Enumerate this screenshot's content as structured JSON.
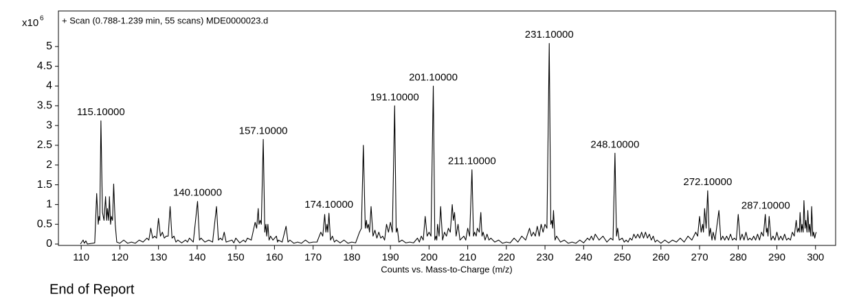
{
  "chart_data": {
    "type": "line",
    "title": "+ Scan (0.788-1.239 min, 55 scans) MDE0000023.d",
    "x_label": "Counts vs. Mass-to-Charge (m/z)",
    "y_scale": "x10",
    "y_scale_exp": "6",
    "color": "#000000",
    "xlim": [
      104.1,
      305.2
    ],
    "ylim": [
      0,
      5.9
    ],
    "xticks": [
      110,
      120,
      130,
      140,
      150,
      160,
      170,
      180,
      190,
      200,
      210,
      220,
      230,
      240,
      250,
      260,
      270,
      280,
      290,
      300
    ],
    "yticks": [
      0,
      0.5,
      1,
      1.5,
      2,
      2.5,
      3,
      3.5,
      4,
      4.5,
      5
    ],
    "x": [
      109.8,
      110.5,
      110.8,
      111.2,
      111.6,
      113.5,
      114,
      114.4,
      114.6,
      114.8,
      115.1,
      115.5,
      115.9,
      116.3,
      116.6,
      116.8,
      117.1,
      117.3,
      117.6,
      117.8,
      118.1,
      118.4,
      118.8,
      119.2,
      120,
      121,
      122,
      123,
      124,
      125,
      126,
      127,
      127.5,
      128,
      128.5,
      129,
      129.5,
      130,
      130.5,
      131,
      131.5,
      132,
      132.5,
      133,
      133.5,
      134,
      134.5,
      135,
      136,
      137,
      137.5,
      138,
      139,
      140.1,
      140.6,
      141,
      142,
      143,
      144,
      145,
      145.5,
      146,
      146.5,
      147,
      147.5,
      149,
      149.5,
      150,
      151,
      152,
      152.5,
      153,
      154,
      155,
      155.4,
      155.8,
      156,
      156.3,
      156.6,
      157.1,
      157.5,
      157.8,
      158,
      158.3,
      158.6,
      159,
      159.6,
      160.5,
      160.8,
      161,
      162,
      163,
      163.5,
      164,
      165,
      166,
      167,
      168,
      169,
      170,
      171,
      172,
      172.5,
      173,
      173.3,
      173.6,
      173.8,
      174.1,
      174.5,
      175,
      175.5,
      176,
      177,
      178,
      179,
      180,
      181,
      182,
      182.5,
      183,
      183.5,
      183.8,
      184,
      184.3,
      184.6,
      185,
      185.5,
      186,
      186.5,
      187,
      187.5,
      188,
      188.5,
      189,
      189.5,
      190,
      190.5,
      191.1,
      191.5,
      191.8,
      192.2,
      193,
      194,
      195,
      196,
      197,
      197.5,
      198,
      198.5,
      199,
      199.5,
      200,
      200.5,
      201.1,
      201.5,
      201.8,
      202,
      202.2,
      202.6,
      203,
      203.5,
      204,
      204.5,
      205,
      205.5,
      206,
      206.3,
      206.6,
      207,
      207.5,
      208,
      209,
      209.5,
      210,
      210.5,
      211.1,
      211.5,
      211.8,
      212.2,
      212.5,
      213,
      213.4,
      213.7,
      214,
      214.5,
      215,
      215.5,
      216,
      217,
      218,
      219,
      220,
      221,
      222,
      223,
      224,
      225,
      226,
      226.5,
      227,
      227.5,
      228,
      228.5,
      229,
      229.5,
      230,
      230.5,
      231.1,
      231.5,
      231.8,
      232,
      232.2,
      232.6,
      233,
      234,
      235,
      236,
      237,
      238,
      239,
      240,
      241,
      241.5,
      242,
      242.5,
      243,
      244,
      245,
      246,
      247,
      247.6,
      248.1,
      248.5,
      248.8,
      249.2,
      250,
      250.5,
      251,
      251.5,
      252,
      252.5,
      253,
      253.5,
      254,
      254.5,
      255,
      255.5,
      256,
      256.5,
      257,
      257.5,
      258,
      258.5,
      259,
      260,
      261,
      262,
      263,
      264,
      265,
      266,
      267,
      268,
      269,
      269.5,
      270,
      270.4,
      270.8,
      271,
      271.3,
      271.7,
      272.1,
      272.5,
      272.8,
      273.2,
      273.5,
      274,
      275,
      275.5,
      276,
      276.5,
      277,
      277.5,
      278,
      278.5,
      279,
      279.5,
      280,
      280.5,
      281,
      281.5,
      282,
      282.5,
      283,
      283.5,
      284,
      284.5,
      285,
      285.5,
      286,
      286.5,
      287,
      287.3,
      287.5,
      287.7,
      288,
      288.5,
      289,
      289.5,
      290,
      290.5,
      291,
      291.5,
      292,
      292.5,
      293,
      293.5,
      294,
      294.5,
      295,
      295.3,
      295.6,
      295.8,
      296,
      296.3,
      296.5,
      296.8,
      297,
      297.3,
      297.5,
      297.8,
      298,
      298.3,
      298.5,
      298.8,
      299,
      299.3,
      299.5,
      299.8,
      300,
      300.2
    ],
    "values": [
      0,
      0.1,
      0.02,
      0.08,
      0,
      0.03,
      1.28,
      0.5,
      0.7,
      0.6,
      3.12,
      0.8,
      0.6,
      1.2,
      0.6,
      0.9,
      0.6,
      1.2,
      0.5,
      0.7,
      0.6,
      1.52,
      0.5,
      0.05,
      0.02,
      0.1,
      0.02,
      0.05,
      0.02,
      0.1,
      0.05,
      0.15,
      0.1,
      0.4,
      0.15,
      0.2,
      0.15,
      0.65,
      0.2,
      0.3,
      0.15,
      0.2,
      0.2,
      0.95,
      0.15,
      0.2,
      0.05,
      0.1,
      0.03,
      0.1,
      0.05,
      0.15,
      0.05,
      1.08,
      0.1,
      0.15,
      0.05,
      0.1,
      0.05,
      0.95,
      0.1,
      0.15,
      0.1,
      0.3,
      0.05,
      0.1,
      0.03,
      0.15,
      0.03,
      0.1,
      0.05,
      0.15,
      0.1,
      0.55,
      0.4,
      0.9,
      0.5,
      0.6,
      0.5,
      2.65,
      0.3,
      0.5,
      0.2,
      0.5,
      0.1,
      0.2,
      0.1,
      0.2,
      0.05,
      0.1,
      0.05,
      0.45,
      0.05,
      0.1,
      0.02,
      0.05,
      0.02,
      0.1,
      0.03,
      0.05,
      0.05,
      0.3,
      0.2,
      0.75,
      0.3,
      0.5,
      0.3,
      0.78,
      0.1,
      0.2,
      0.05,
      0.1,
      0.03,
      0.1,
      0.02,
      0.05,
      0.03,
      0.3,
      0.4,
      2.5,
      0.4,
      0.6,
      0.4,
      0.5,
      0.3,
      0.95,
      0.2,
      0.35,
      0.15,
      0.3,
      0.15,
      0.2,
      0.1,
      0.5,
      0.3,
      0.55,
      0.3,
      3.5,
      0.3,
      0.4,
      0.05,
      0.1,
      0.03,
      0.05,
      0.03,
      0.15,
      0.05,
      0.2,
      0.1,
      0.7,
      0.2,
      0.3,
      0.2,
      4.0,
      0.1,
      0.2,
      0.1,
      0.5,
      0.2,
      0.95,
      0.1,
      0.3,
      0.2,
      0.4,
      0.3,
      1.0,
      0.6,
      0.8,
      0.2,
      0.5,
      0.1,
      0.2,
      0.1,
      0.4,
      0.2,
      1.88,
      0.2,
      0.3,
      0.2,
      0.4,
      0.3,
      0.8,
      0.2,
      0.3,
      0.1,
      0.25,
      0.1,
      0.15,
      0.05,
      0.1,
      0.02,
      0.05,
      0.03,
      0.15,
      0.05,
      0.2,
      0.1,
      0.4,
      0.2,
      0.3,
      0.2,
      0.45,
      0.2,
      0.5,
      0.3,
      0.5,
      0.4,
      5.08,
      0.5,
      0.6,
      0.4,
      0.85,
      0.1,
      0.2,
      0.05,
      0.1,
      0.02,
      0.05,
      0.02,
      0.1,
      0.03,
      0.15,
      0.1,
      0.2,
      0.1,
      0.25,
      0.1,
      0.2,
      0.05,
      0.15,
      0.1,
      2.3,
      0.2,
      0.4,
      0.1,
      0.15,
      0.05,
      0.1,
      0.05,
      0.15,
      0.1,
      0.25,
      0.15,
      0.25,
      0.15,
      0.3,
      0.15,
      0.3,
      0.15,
      0.25,
      0.1,
      0.2,
      0.05,
      0.1,
      0.02,
      0.1,
      0.03,
      0.1,
      0.05,
      0.15,
      0.05,
      0.2,
      0.1,
      0.3,
      0.2,
      0.7,
      0.3,
      0.5,
      0.3,
      0.9,
      0.4,
      1.35,
      0.2,
      0.4,
      0.1,
      0.3,
      0.1,
      0.85,
      0.1,
      0.2,
      0.1,
      0.2,
      0.1,
      0.25,
      0.1,
      0.15,
      0.1,
      0.75,
      0.1,
      0.25,
      0.1,
      0.3,
      0.1,
      0.15,
      0.1,
      0.2,
      0.1,
      0.25,
      0.1,
      0.3,
      0.2,
      0.75,
      0.3,
      0.4,
      0.2,
      0.7,
      0.1,
      0.2,
      0.1,
      0.3,
      0.1,
      0.2,
      0.1,
      0.25,
      0.1,
      0.15,
      0.1,
      0.3,
      0.2,
      0.6,
      0.3,
      0.4,
      0.3,
      0.8,
      0.3,
      0.5,
      0.3,
      1.1,
      0.4,
      0.6,
      0.3,
      0.85,
      0.3,
      0.5,
      0.2,
      0.95,
      0.2,
      0.3,
      0.15,
      0.25,
      0.3
    ],
    "annotations": [
      {
        "text": "115.10000",
        "x": 115.1,
        "y": 3.12
      },
      {
        "text": "140.10000",
        "x": 140.1,
        "y": 1.08
      },
      {
        "text": "157.10000",
        "x": 157.1,
        "y": 2.65
      },
      {
        "text": "174.10000",
        "x": 174.1,
        "y": 0.78
      },
      {
        "text": "191.10000",
        "x": 191.1,
        "y": 3.5
      },
      {
        "text": "201.10000",
        "x": 201.1,
        "y": 4.0
      },
      {
        "text": "211.10000",
        "x": 211.1,
        "y": 1.88
      },
      {
        "text": "231.10000",
        "x": 231.1,
        "y": 5.08
      },
      {
        "text": "248.10000",
        "x": 248.1,
        "y": 2.3
      },
      {
        "text": "272.10000",
        "x": 272.1,
        "y": 1.35
      },
      {
        "text": "287.10000",
        "x": 287.1,
        "y": 0.75
      }
    ]
  },
  "footer": "End of Report"
}
